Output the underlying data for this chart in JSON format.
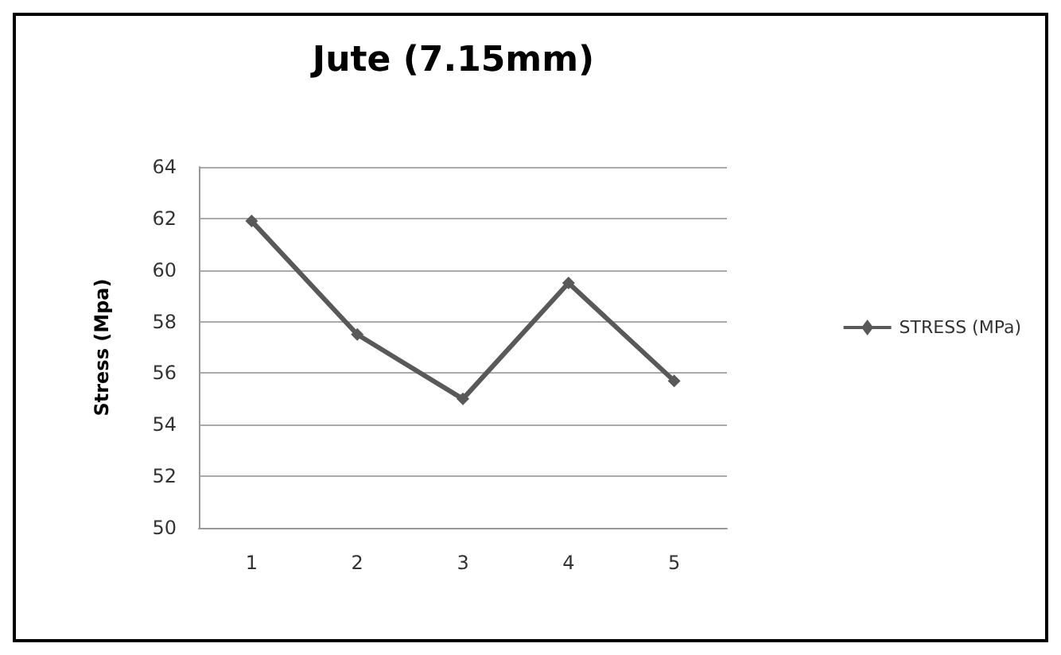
{
  "chart_data": {
    "type": "line",
    "title": "Jute (7.15mm)",
    "ylabel": "Stress (Mpa)",
    "categories": [
      "1",
      "2",
      "3",
      "4",
      "5"
    ],
    "series": [
      {
        "name": "STRESS (MPa)",
        "color": "#595959",
        "values": [
          61.9,
          57.5,
          55.0,
          59.5,
          55.7
        ]
      }
    ],
    "ylim": [
      50,
      64
    ],
    "yticks": [
      50,
      52,
      54,
      56,
      58,
      60,
      62,
      64
    ],
    "grid": "y",
    "legend": "right",
    "marker": "diamond",
    "line_style": "solid"
  }
}
